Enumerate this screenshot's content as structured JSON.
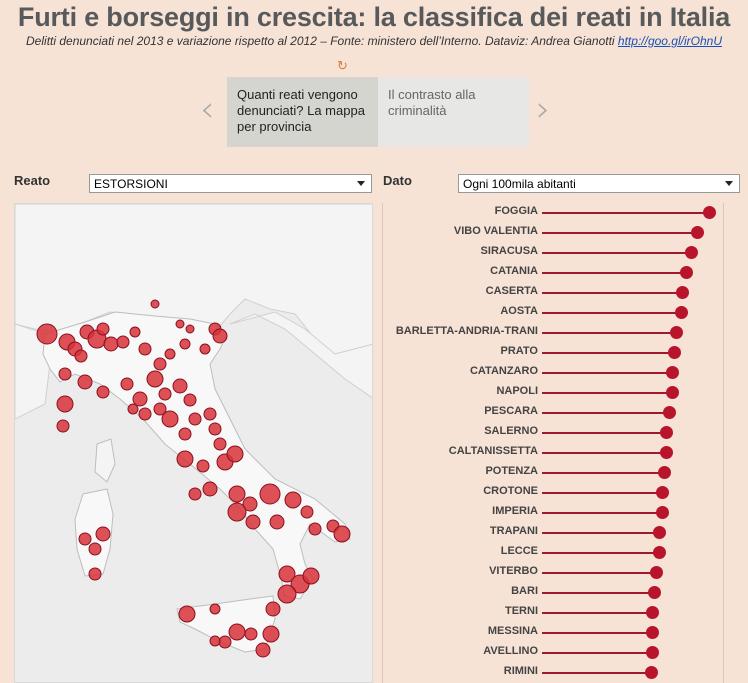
{
  "header": {
    "title": "Furti e borseggi in crescita: la classifica dei reati in Italia",
    "subtitle": "Delitti denunciati nel 2013 e variazione rispetto al 2012 – Fonte: ministero dell’Interno. Dataviz: Andrea Gianotti",
    "link": "http://goo.gl/irOhnU"
  },
  "icons": {
    "replay": "replay-icon",
    "prev": "chevron-left-icon",
    "next": "chevron-right-icon"
  },
  "stepper": {
    "steps": [
      {
        "label": "Quanti reati vengono denunciati? La mappa per provincia",
        "active": true
      },
      {
        "label": "Il contrasto alla criminalità",
        "active": false
      }
    ]
  },
  "filters": {
    "reato_label": "Reato",
    "reato_value": "ESTORSIONI",
    "dato_label": "Dato",
    "dato_value": "Ogni 100mila abitanti"
  },
  "colors": {
    "dot": "#b8142c",
    "line": "#a0192e",
    "map_bubble": "#d8333a",
    "background": "#f7e3d6"
  },
  "ranking": [
    {
      "name": "FOGGIA",
      "value": 1.0
    },
    {
      "name": "VIBO VALENTIA",
      "value": 0.93
    },
    {
      "name": "SIRACUSA",
      "value": 0.89
    },
    {
      "name": "CATANIA",
      "value": 0.86
    },
    {
      "name": "CASERTA",
      "value": 0.84
    },
    {
      "name": "AOSTA",
      "value": 0.83
    },
    {
      "name": "BARLETTA-ANDRIA-TRANI",
      "value": 0.8
    },
    {
      "name": "PRATO",
      "value": 0.79
    },
    {
      "name": "CATANZARO",
      "value": 0.78
    },
    {
      "name": "NAPOLI",
      "value": 0.78
    },
    {
      "name": "PESCARA",
      "value": 0.76
    },
    {
      "name": "SALERNO",
      "value": 0.74
    },
    {
      "name": "CALTANISSETTA",
      "value": 0.74
    },
    {
      "name": "POTENZA",
      "value": 0.73
    },
    {
      "name": "CROTONE",
      "value": 0.72
    },
    {
      "name": "IMPERIA",
      "value": 0.72
    },
    {
      "name": "TRAPANI",
      "value": 0.7
    },
    {
      "name": "LECCE",
      "value": 0.7
    },
    {
      "name": "VITERBO",
      "value": 0.68
    },
    {
      "name": "BARI",
      "value": 0.67
    },
    {
      "name": "TERNI",
      "value": 0.66
    },
    {
      "name": "MESSINA",
      "value": 0.66
    },
    {
      "name": "AVELLINO",
      "value": 0.66
    },
    {
      "name": "RIMINI",
      "value": 0.65
    }
  ]
}
